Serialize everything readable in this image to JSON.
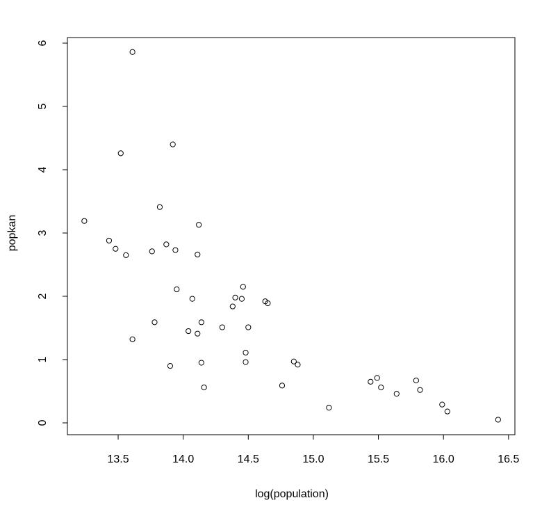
{
  "chart_data": {
    "type": "scatter",
    "xlabel": "log(population)",
    "ylabel": "popkan",
    "x": [
      13.61,
      13.52,
      13.92,
      13.24,
      13.82,
      14.12,
      13.43,
      13.48,
      13.56,
      13.76,
      13.87,
      13.94,
      14.11,
      13.95,
      14.46,
      14.07,
      14.4,
      14.45,
      14.38,
      14.63,
      14.65,
      13.78,
      14.14,
      14.3,
      14.5,
      14.04,
      14.11,
      13.61,
      14.48,
      14.48,
      14.14,
      13.9,
      14.85,
      14.88,
      14.16,
      14.76,
      15.12,
      15.44,
      15.49,
      15.52,
      15.64,
      15.79,
      15.82,
      15.99,
      16.03,
      16.42
    ],
    "values": [
      5.86,
      4.26,
      4.4,
      3.19,
      3.41,
      3.13,
      2.88,
      2.75,
      2.65,
      2.71,
      2.82,
      2.73,
      2.66,
      2.11,
      2.15,
      1.96,
      1.98,
      1.96,
      1.84,
      1.92,
      1.89,
      1.59,
      1.59,
      1.51,
      1.51,
      1.45,
      1.41,
      1.32,
      1.11,
      0.96,
      0.95,
      0.9,
      0.97,
      0.92,
      0.56,
      0.59,
      0.24,
      0.65,
      0.71,
      0.56,
      0.46,
      0.67,
      0.52,
      0.29,
      0.18,
      0.05
    ],
    "color": "#000000",
    "xlim": [
      13.11,
      16.549
    ],
    "ylim": [
      -0.187,
      6.088
    ],
    "xticks": [
      {
        "value": 13.5,
        "label": "13.5"
      },
      {
        "value": 14,
        "label": "14.0"
      },
      14.5,
      {
        "value": 15,
        "label": "15.0"
      },
      15.5,
      {
        "value": 16,
        "label": "16.0"
      },
      16.5
    ],
    "yticks": [
      0,
      1,
      2,
      3,
      4,
      5,
      6
    ]
  }
}
